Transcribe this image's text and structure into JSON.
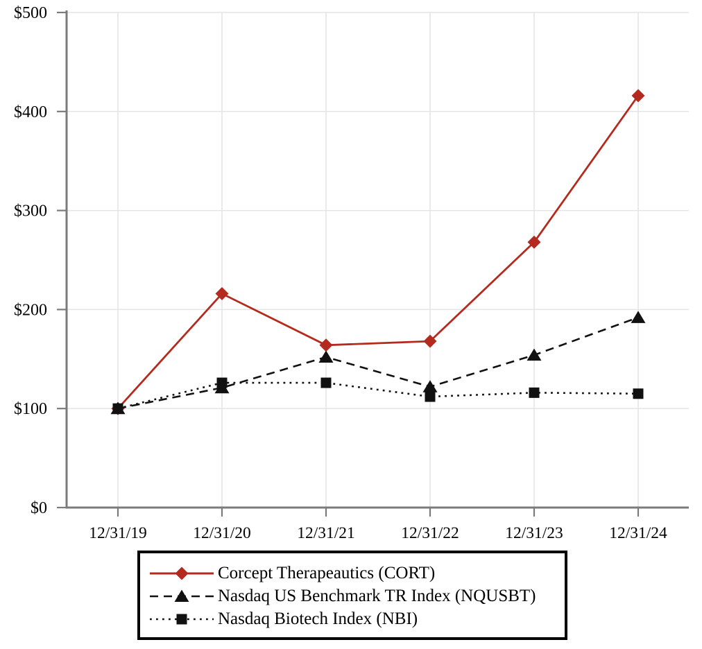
{
  "chart_data": {
    "type": "line",
    "title": "",
    "xlabel": "",
    "ylabel": "",
    "categories": [
      "12/31/19",
      "12/31/20",
      "12/31/21",
      "12/31/22",
      "12/31/23",
      "12/31/24"
    ],
    "series": [
      {
        "name": "Corcept Therapeautics (CORT)",
        "color": "#b42a1e",
        "line_style": "solid",
        "marker": "diamond",
        "values": [
          100,
          216,
          164,
          168,
          268,
          416
        ]
      },
      {
        "name": "Nasdaq US Benchmark TR Index (NQUSBT)",
        "color": "#111111",
        "line_style": "dashed",
        "marker": "triangle",
        "values": [
          100,
          121,
          152,
          122,
          154,
          192
        ]
      },
      {
        "name": "Nasdaq Biotech Index (NBI)",
        "color": "#111111",
        "line_style": "dotted",
        "marker": "square",
        "values": [
          100,
          126,
          126,
          112,
          116,
          115
        ]
      }
    ],
    "y_ticks": [
      {
        "value": 0,
        "label": "$0"
      },
      {
        "value": 100,
        "label": "$100"
      },
      {
        "value": 200,
        "label": "$200"
      },
      {
        "value": 300,
        "label": "$300"
      },
      {
        "value": 400,
        "label": "$400"
      },
      {
        "value": 500,
        "label": "$500"
      }
    ],
    "ylim": [
      0,
      500
    ],
    "grid": true,
    "legend_position": "bottom",
    "colors": {
      "axis": "#7b7b7b",
      "grid": "#e4e4e4",
      "tick": "#7b7b7b",
      "text": "#000000",
      "background": "#ffffff"
    }
  }
}
